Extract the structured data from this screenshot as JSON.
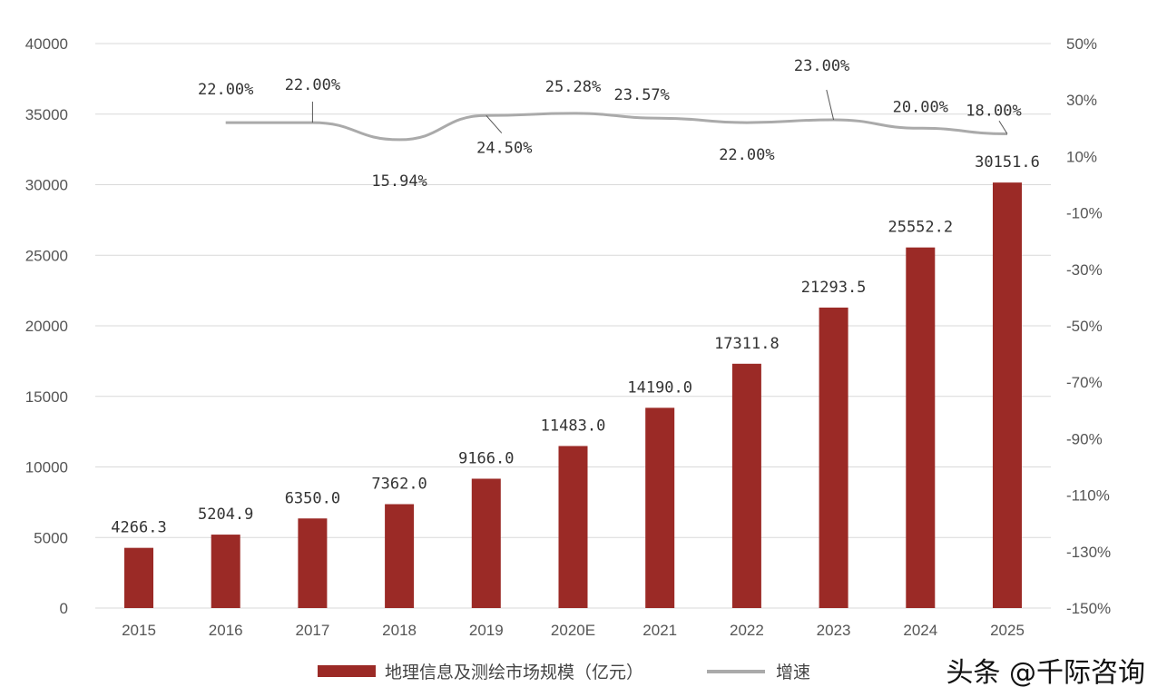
{
  "chart_data": {
    "type": "bar+line",
    "categories": [
      "2015",
      "2016",
      "2017",
      "2018",
      "2019",
      "2020E",
      "2021",
      "2022",
      "2023",
      "2024",
      "2025"
    ],
    "series": [
      {
        "name": "地理信息及测绘市场规模（亿元）",
        "type": "bar",
        "axis": "left",
        "color": "#9b2a26",
        "values": [
          4266.3,
          5204.9,
          6350.0,
          7362.0,
          9166.0,
          11483.0,
          14190.0,
          17311.8,
          21293.5,
          25552.2,
          30151.6
        ],
        "labels": [
          "4266.3",
          "5204.9",
          "6350.0",
          "7362.0",
          "9166.0",
          "11483.0",
          "14190.0",
          "17311.8",
          "21293.5",
          "25552.2",
          "30151.6"
        ]
      },
      {
        "name": "增速",
        "type": "line",
        "axis": "right",
        "color": "#aaaaaa",
        "values": [
          null,
          22.0,
          22.0,
          15.94,
          24.5,
          25.28,
          23.57,
          22.0,
          23.0,
          20.0,
          18.0
        ],
        "labels": [
          "",
          "22.00%",
          "22.00%",
          "15.94%",
          "24.50%",
          "25.28%",
          "23.57%",
          "22.00%",
          "23.00%",
          "20.00%",
          "18.00%"
        ]
      }
    ],
    "y_left": {
      "lim": [
        0,
        40000
      ],
      "ticks": [
        "0",
        "5000",
        "10000",
        "15000",
        "20000",
        "25000",
        "30000",
        "35000",
        "40000"
      ]
    },
    "y_right": {
      "lim": [
        -150,
        50
      ],
      "ticks": [
        "-150%",
        "-130%",
        "-110%",
        "-90%",
        "-70%",
        "-50%",
        "-30%",
        "-10%",
        "10%",
        "30%",
        "50%"
      ]
    },
    "grid": true,
    "legend": "bottom"
  },
  "watermark": "头条 @千际咨询"
}
